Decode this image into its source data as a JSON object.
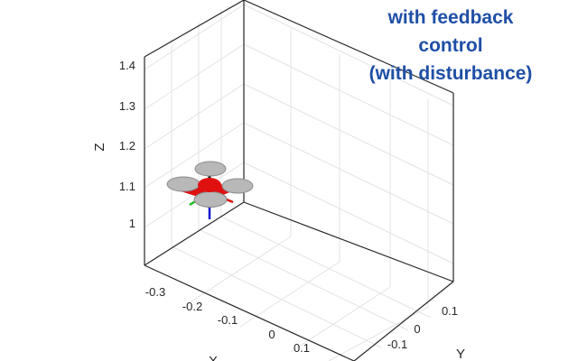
{
  "caption": {
    "line1": "with feedback",
    "line2": "control",
    "line3": "(with disturbance)",
    "color": "#1f4fa6"
  },
  "plot": {
    "z_label": "Z",
    "y_label": "Y",
    "x_label": "X",
    "z_ticks": [
      "1",
      "1.1",
      "1.2",
      "1.3",
      "1.4"
    ],
    "x_ticks": [
      "-0.3",
      "-0.2",
      "-0.1",
      "0",
      "0.1"
    ],
    "y_ticks": [
      "-0.1",
      "0",
      "0.1"
    ],
    "grid": true
  },
  "drone": {
    "body_color": "#e01010",
    "rotor_color": "#b8b8b8",
    "axis_colors": {
      "x": "#e01010",
      "y": "#18c018",
      "z": "#1010d0"
    }
  }
}
